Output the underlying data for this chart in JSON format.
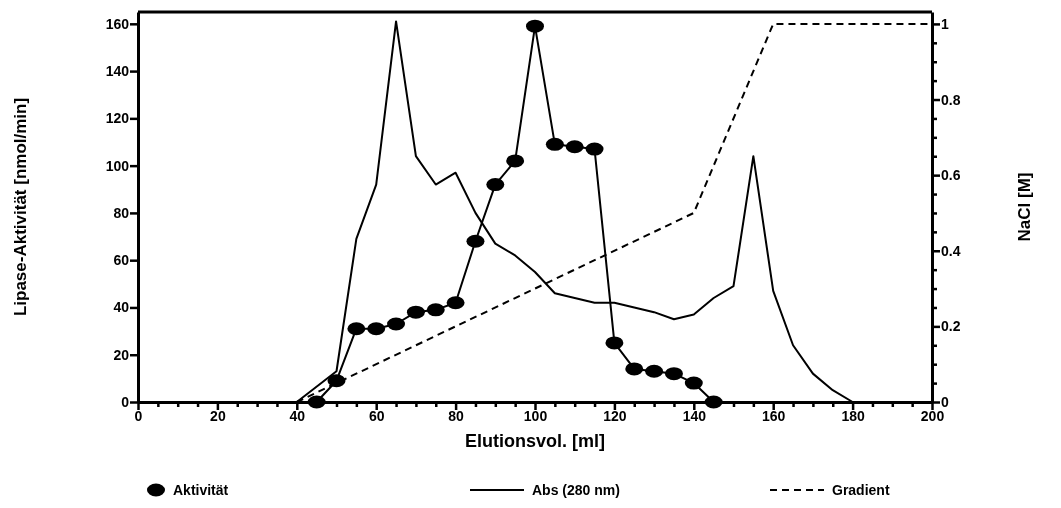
{
  "chart_data": {
    "type": "line",
    "xlabel": "Elutionsvol. [ml]",
    "ylabel": "Lipase-Aktivität [nmol/min]",
    "y2label": "NaCl [M]",
    "legend": "bottom",
    "grid": false,
    "xlim": [
      0,
      200
    ],
    "ylim": [
      0,
      165
    ],
    "y2lim": [
      0,
      1.0315
    ],
    "xticks": [
      0,
      {
        "value": 5,
        "label": null
      },
      {
        "value": 10,
        "label": null
      },
      {
        "value": 15,
        "label": null
      },
      20,
      {
        "value": 25,
        "label": null
      },
      {
        "value": 30,
        "label": null
      },
      {
        "value": 35,
        "label": null
      },
      40,
      {
        "value": 45,
        "label": null
      },
      {
        "value": 50,
        "label": null
      },
      {
        "value": 55,
        "label": null
      },
      60,
      {
        "value": 65,
        "label": null
      },
      {
        "value": 70,
        "label": null
      },
      {
        "value": 75,
        "label": null
      },
      80,
      {
        "value": 85,
        "label": null
      },
      {
        "value": 90,
        "label": null
      },
      {
        "value": 95,
        "label": null
      },
      100,
      {
        "value": 105,
        "label": null
      },
      {
        "value": 110,
        "label": null
      },
      {
        "value": 115,
        "label": null
      },
      120,
      {
        "value": 125,
        "label": null
      },
      {
        "value": 130,
        "label": null
      },
      {
        "value": 135,
        "label": null
      },
      140,
      {
        "value": 145,
        "label": null
      },
      {
        "value": 150,
        "label": null
      },
      {
        "value": 155,
        "label": null
      },
      160,
      {
        "value": 165,
        "label": null
      },
      {
        "value": 170,
        "label": null
      },
      {
        "value": 175,
        "label": null
      },
      180,
      {
        "value": 185,
        "label": null
      },
      {
        "value": 190,
        "label": null
      },
      {
        "value": 195,
        "label": null
      },
      200
    ],
    "yticks": [
      0,
      20,
      40,
      60,
      80,
      100,
      120,
      140,
      160
    ],
    "y2ticks": [
      0,
      {
        "value": 0.05,
        "label": null
      },
      {
        "value": 0.1,
        "label": null
      },
      {
        "value": 0.15,
        "label": null
      },
      0.2,
      {
        "value": 0.25,
        "label": null
      },
      {
        "value": 0.3,
        "label": null
      },
      {
        "value": 0.35,
        "label": null
      },
      0.4,
      {
        "value": 0.45,
        "label": null
      },
      {
        "value": 0.5,
        "label": null
      },
      {
        "value": 0.55,
        "label": null
      },
      0.6,
      {
        "value": 0.65,
        "label": null
      },
      {
        "value": 0.7,
        "label": null
      },
      {
        "value": 0.75,
        "label": null
      },
      0.8,
      {
        "value": 0.85,
        "label": null
      },
      {
        "value": 0.9,
        "label": null
      },
      {
        "value": 0.95,
        "label": null
      },
      1
    ],
    "series": [
      {
        "name": "Aktivität",
        "color": "#000000",
        "marker": "circle",
        "line_style": "solid",
        "x": [
          45,
          50,
          55,
          60,
          65,
          70,
          75,
          80,
          85,
          90,
          95,
          100,
          105,
          110,
          115,
          120,
          125,
          130,
          135,
          140,
          145
        ],
        "values": [
          0,
          9,
          31,
          31,
          33,
          38,
          39,
          42,
          68,
          92,
          102,
          159,
          109,
          108,
          107,
          25,
          14,
          13,
          12,
          8,
          0
        ]
      },
      {
        "name": "Abs (280 nm)",
        "color": "#000000",
        "marker": "none",
        "line_style": "solid",
        "x": [
          0,
          40,
          50,
          55,
          60,
          65,
          70,
          75,
          80,
          85,
          90,
          95,
          100,
          105,
          110,
          115,
          120,
          125,
          130,
          135,
          140,
          145,
          150,
          155,
          160,
          165,
          170,
          175,
          180
        ],
        "values": [
          0,
          0,
          13,
          69,
          92,
          161,
          104,
          92,
          97,
          80,
          67,
          62,
          55,
          46,
          44,
          42,
          42,
          40,
          38,
          35,
          37,
          44,
          49,
          104,
          47,
          24,
          12,
          5,
          0
        ]
      },
      {
        "name": "Gradient",
        "color": "#000000",
        "marker": "none",
        "line_style": "dashed",
        "axis": "y2",
        "x": [
          40,
          140,
          160,
          200
        ],
        "values": [
          0,
          0.5,
          1,
          1
        ]
      }
    ]
  }
}
